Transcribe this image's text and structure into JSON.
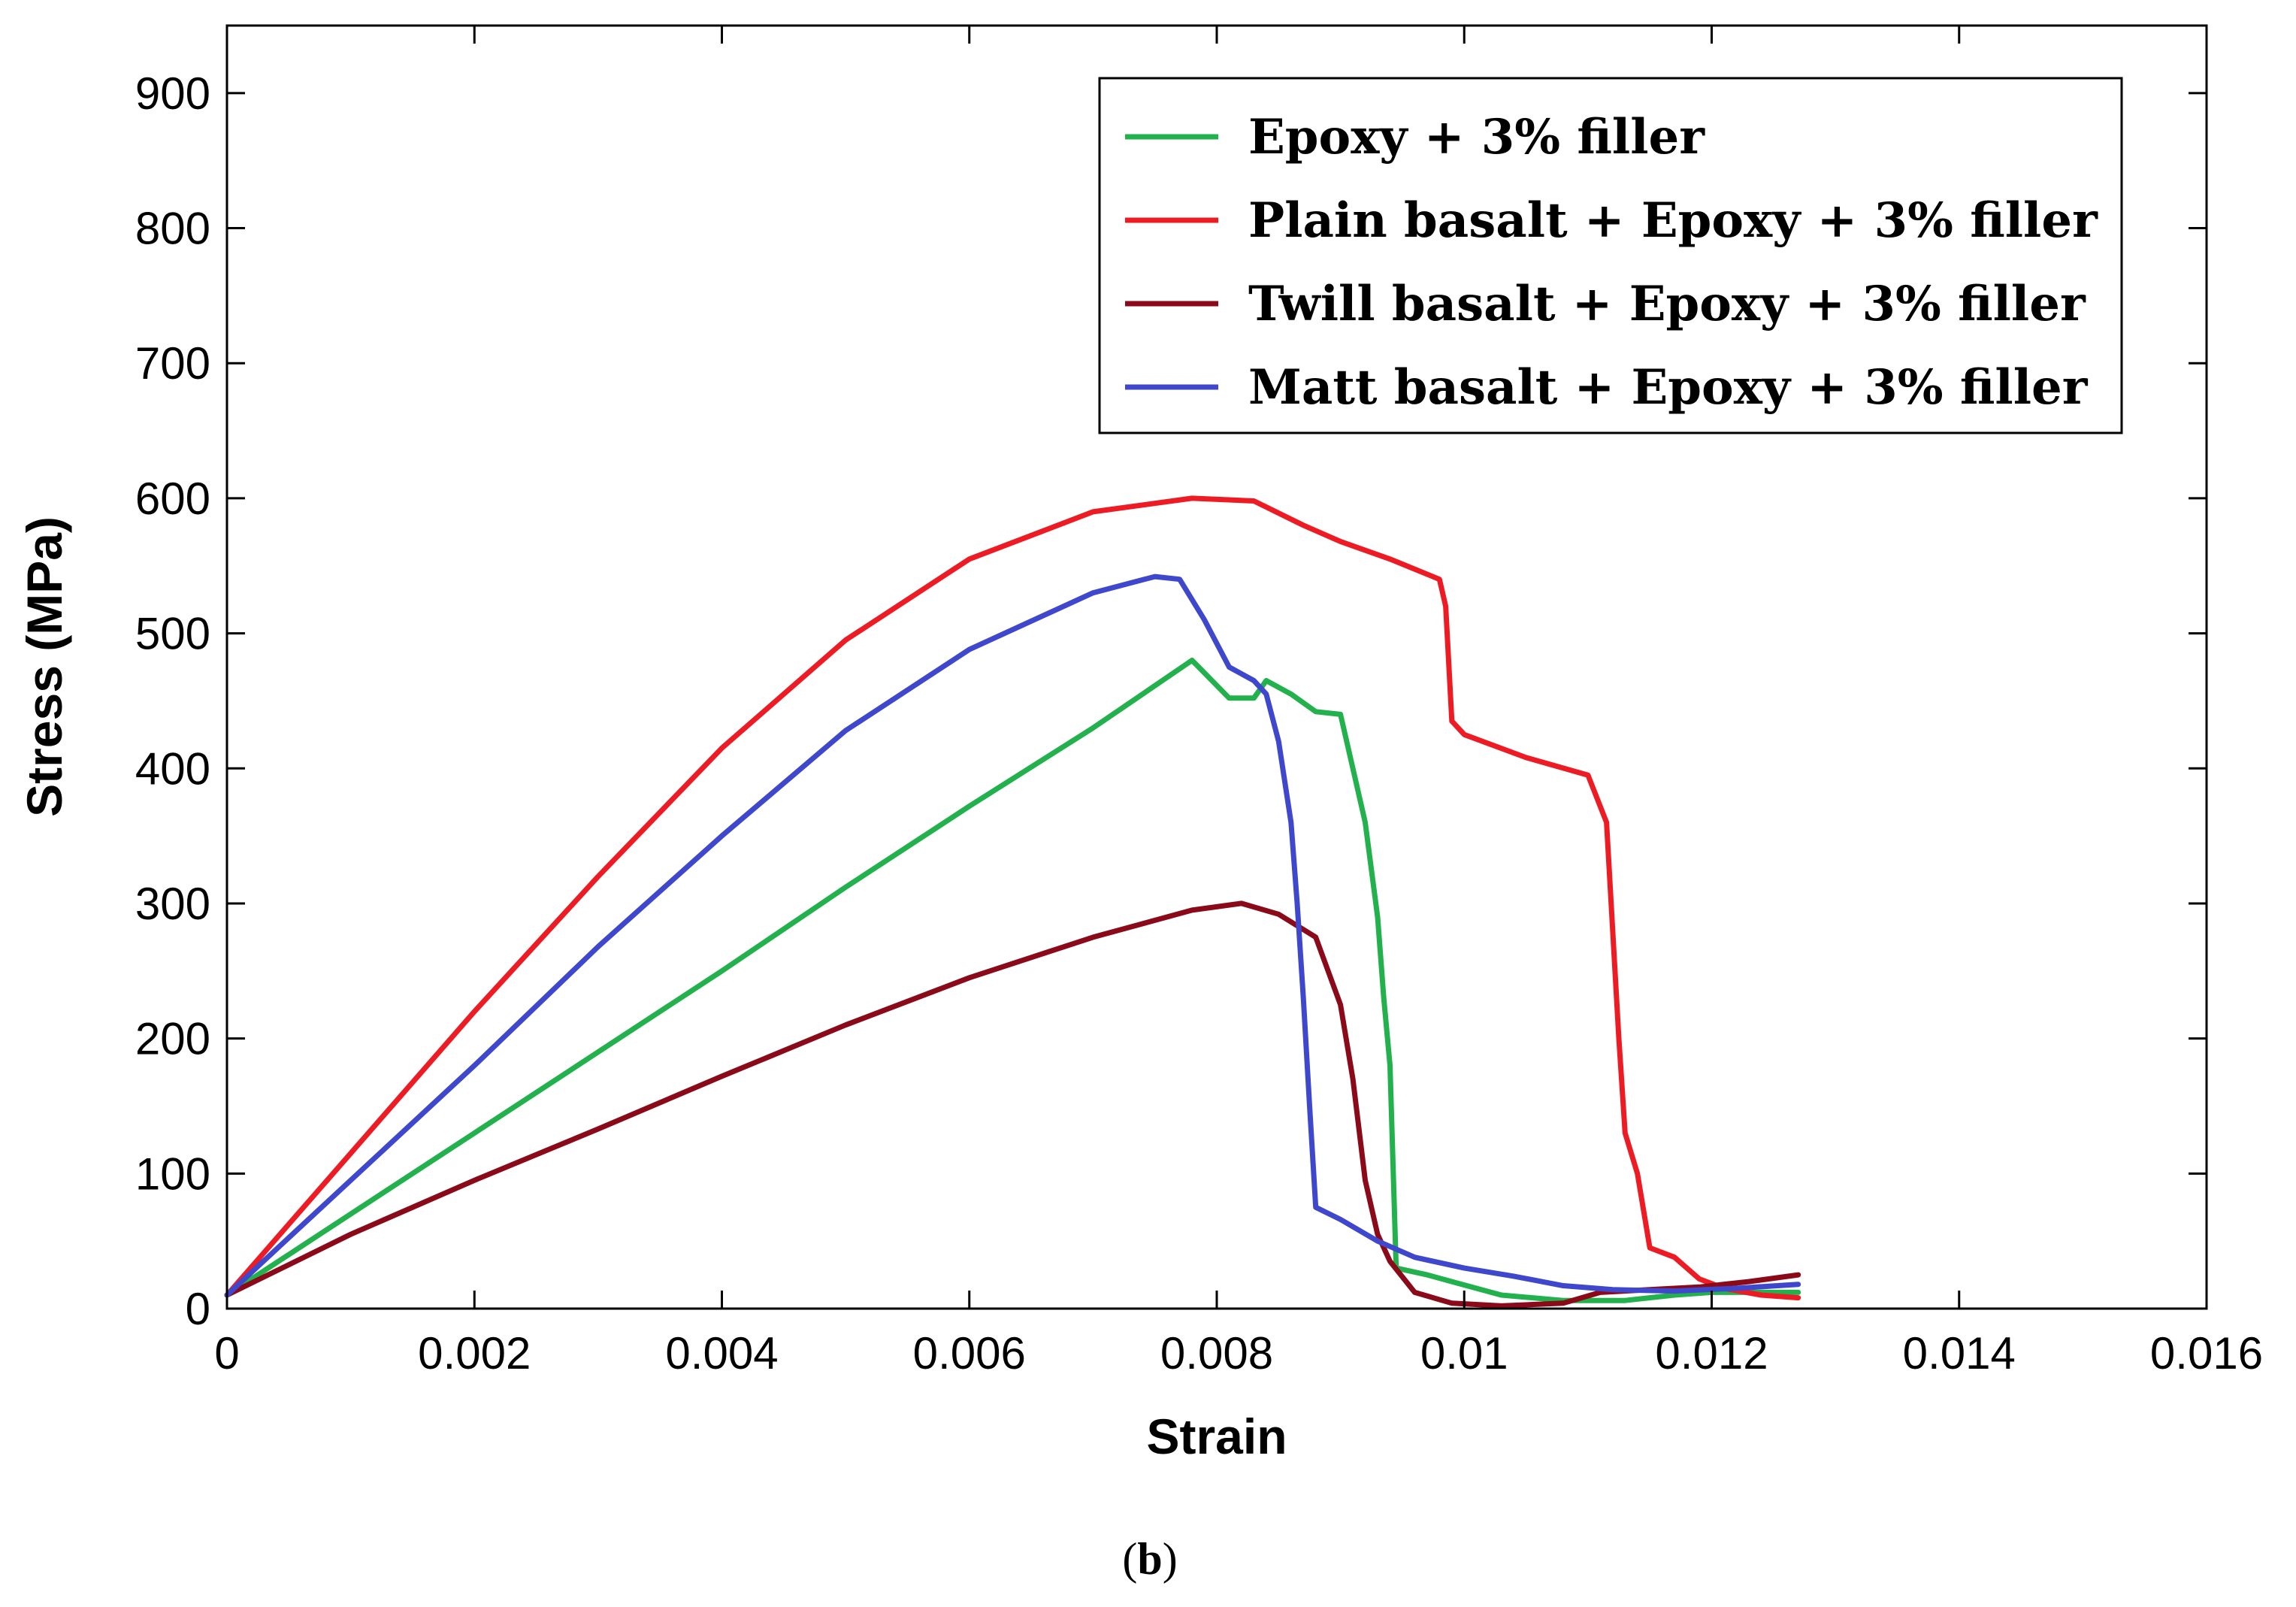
{
  "chart_data": {
    "type": "line",
    "title": "",
    "xlabel": "Strain",
    "ylabel": "Stress (MPa)",
    "xlim": [
      0,
      0.016
    ],
    "ylim": [
      0,
      950
    ],
    "xticks": [
      0,
      0.002,
      0.004,
      0.006,
      0.008,
      0.01,
      0.012,
      0.014,
      0.016
    ],
    "xtick_labels": [
      "0",
      "0.002",
      "0.004",
      "0.006",
      "0.008",
      "0.01",
      "0.012",
      "0.014",
      "0.016"
    ],
    "yticks": [
      0,
      100,
      200,
      300,
      400,
      500,
      600,
      700,
      800,
      900
    ],
    "ytick_labels": [
      "0",
      "100",
      "200",
      "300",
      "400",
      "500",
      "600",
      "700",
      "800",
      "900"
    ],
    "grid": false,
    "legend_position": "top-right",
    "series": [
      {
        "name": "Epoxy + 3% filler",
        "color": "#22b14c",
        "points": [
          [
            0,
            10
          ],
          [
            0.001,
            70
          ],
          [
            0.002,
            130
          ],
          [
            0.003,
            190
          ],
          [
            0.004,
            250
          ],
          [
            0.005,
            312
          ],
          [
            0.006,
            372
          ],
          [
            0.007,
            430
          ],
          [
            0.0078,
            480
          ],
          [
            0.0081,
            452
          ],
          [
            0.0083,
            452
          ],
          [
            0.0084,
            465
          ],
          [
            0.0086,
            455
          ],
          [
            0.0088,
            442
          ],
          [
            0.009,
            440
          ],
          [
            0.0091,
            400
          ],
          [
            0.0092,
            360
          ],
          [
            0.0093,
            290
          ],
          [
            0.00935,
            230
          ],
          [
            0.0094,
            180
          ],
          [
            0.00945,
            30
          ],
          [
            0.0097,
            25
          ],
          [
            0.0099,
            20
          ],
          [
            0.0103,
            10
          ],
          [
            0.0108,
            6
          ],
          [
            0.0113,
            6
          ],
          [
            0.0117,
            10
          ],
          [
            0.012,
            12
          ],
          [
            0.0127,
            12
          ]
        ]
      },
      {
        "name": "Plain basalt + Epoxy + 3% filler",
        "color": "#ed1c24",
        "points": [
          [
            0,
            10
          ],
          [
            0.001,
            115
          ],
          [
            0.002,
            220
          ],
          [
            0.003,
            320
          ],
          [
            0.004,
            415
          ],
          [
            0.005,
            495
          ],
          [
            0.006,
            555
          ],
          [
            0.007,
            590
          ],
          [
            0.0078,
            600
          ],
          [
            0.0083,
            598
          ],
          [
            0.0087,
            580
          ],
          [
            0.009,
            568
          ],
          [
            0.0094,
            555
          ],
          [
            0.0098,
            540
          ],
          [
            0.00985,
            520
          ],
          [
            0.0099,
            435
          ],
          [
            0.01,
            425
          ],
          [
            0.0105,
            408
          ],
          [
            0.011,
            395
          ],
          [
            0.01115,
            360
          ],
          [
            0.0112,
            280
          ],
          [
            0.01125,
            200
          ],
          [
            0.0113,
            130
          ],
          [
            0.0114,
            100
          ],
          [
            0.0115,
            45
          ],
          [
            0.0117,
            38
          ],
          [
            0.0119,
            22
          ],
          [
            0.0121,
            15
          ],
          [
            0.0124,
            10
          ],
          [
            0.0127,
            8
          ]
        ]
      },
      {
        "name": "Twill basalt + Epoxy + 3% filler",
        "color": "#8b0a1a",
        "points": [
          [
            0,
            10
          ],
          [
            0.001,
            55
          ],
          [
            0.002,
            95
          ],
          [
            0.003,
            133
          ],
          [
            0.004,
            172
          ],
          [
            0.005,
            210
          ],
          [
            0.006,
            245
          ],
          [
            0.007,
            275
          ],
          [
            0.0078,
            295
          ],
          [
            0.0082,
            300
          ],
          [
            0.0085,
            292
          ],
          [
            0.0088,
            275
          ],
          [
            0.009,
            225
          ],
          [
            0.0091,
            170
          ],
          [
            0.0092,
            95
          ],
          [
            0.0093,
            55
          ],
          [
            0.0094,
            35
          ],
          [
            0.0096,
            12
          ],
          [
            0.0099,
            4
          ],
          [
            0.0103,
            2
          ],
          [
            0.0108,
            4
          ],
          [
            0.0111,
            12
          ],
          [
            0.0115,
            14
          ],
          [
            0.0119,
            16
          ],
          [
            0.0123,
            20
          ],
          [
            0.0127,
            25
          ]
        ]
      },
      {
        "name": "Matt basalt + Epoxy + 3% filler",
        "color": "#3f48cc",
        "points": [
          [
            0,
            10
          ],
          [
            0.001,
            95
          ],
          [
            0.002,
            180
          ],
          [
            0.003,
            268
          ],
          [
            0.004,
            350
          ],
          [
            0.005,
            428
          ],
          [
            0.006,
            488
          ],
          [
            0.007,
            530
          ],
          [
            0.0075,
            542
          ],
          [
            0.0077,
            540
          ],
          [
            0.0079,
            510
          ],
          [
            0.0081,
            475
          ],
          [
            0.0083,
            465
          ],
          [
            0.0084,
            455
          ],
          [
            0.0085,
            420
          ],
          [
            0.0086,
            360
          ],
          [
            0.00865,
            300
          ],
          [
            0.0087,
            230
          ],
          [
            0.00875,
            150
          ],
          [
            0.0088,
            75
          ],
          [
            0.009,
            66
          ],
          [
            0.0093,
            50
          ],
          [
            0.0096,
            38
          ],
          [
            0.01,
            30
          ],
          [
            0.0104,
            24
          ],
          [
            0.0108,
            17
          ],
          [
            0.0112,
            14
          ],
          [
            0.0117,
            13
          ],
          [
            0.0122,
            15
          ],
          [
            0.0127,
            18
          ]
        ]
      }
    ]
  },
  "caption": {
    "open": "(",
    "letter": "b",
    "close": ")"
  }
}
